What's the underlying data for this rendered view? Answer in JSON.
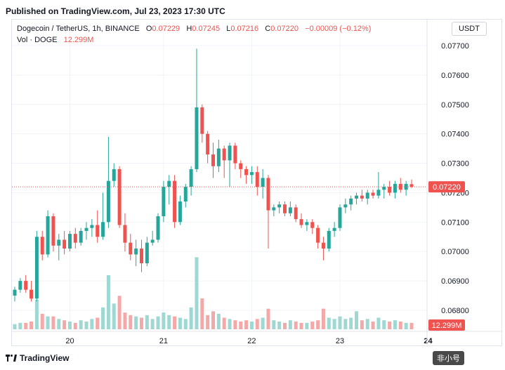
{
  "published": "Published on TradingView.com, Jul 23, 2023 17:30 UTC",
  "legend": {
    "symbol": "Dogecoin / TetherUS, 1h, BINANCE",
    "o_key": "O",
    "o_val": "0.07229",
    "h_key": "H",
    "h_val": "0.07245",
    "l_key": "L",
    "l_val": "0.07216",
    "c_key": "C",
    "c_val": "0.07220",
    "change": "−0.00009 (−0.12%)",
    "vol_label": "Vol · DOGE",
    "vol_val": "12.299M"
  },
  "currency_button": "USDT",
  "footer_brand": "TradingView",
  "watermark": "非小号",
  "colors": {
    "up": "#26a69a",
    "down": "#ef5350",
    "up_vol": "#9fd8d2",
    "down_vol": "#f4a9a8",
    "grid": "#f0f3fa",
    "axis_text": "#131722"
  },
  "chart_data": {
    "type": "candlestick",
    "title": "Dogecoin / TetherUS, 1h, BINANCE",
    "ylim": [
      0.0675,
      0.0775
    ],
    "y_ticks": [
      "0.07700",
      "0.07600",
      "0.07500",
      "0.07400",
      "0.07300",
      "0.07200",
      "0.07100",
      "0.07000",
      "0.06900",
      "0.06800"
    ],
    "x_ticks": [
      {
        "label": "20",
        "index": 10
      },
      {
        "label": "21",
        "index": 27
      },
      {
        "label": "22",
        "index": 43
      },
      {
        "label": "23",
        "index": 59
      },
      {
        "label": "24",
        "index": 75
      }
    ],
    "last_price": "0.07220",
    "last_volume": "12.299M",
    "volume_max": 6.0,
    "candles": [
      {
        "o": 0.0685,
        "h": 0.0688,
        "l": 0.0683,
        "c": 0.0687,
        "v": 0.4
      },
      {
        "o": 0.0687,
        "h": 0.0691,
        "l": 0.0686,
        "c": 0.069,
        "v": 0.5
      },
      {
        "o": 0.069,
        "h": 0.0692,
        "l": 0.0686,
        "c": 0.0687,
        "v": 0.5
      },
      {
        "o": 0.0687,
        "h": 0.069,
        "l": 0.0683,
        "c": 0.0684,
        "v": 0.6
      },
      {
        "o": 0.0684,
        "h": 0.0707,
        "l": 0.0683,
        "c": 0.0705,
        "v": 2.3
      },
      {
        "o": 0.0705,
        "h": 0.0707,
        "l": 0.0697,
        "c": 0.0699,
        "v": 1.2
      },
      {
        "o": 0.0699,
        "h": 0.0714,
        "l": 0.0698,
        "c": 0.0712,
        "v": 1.0
      },
      {
        "o": 0.0712,
        "h": 0.0713,
        "l": 0.07,
        "c": 0.0702,
        "v": 1.0
      },
      {
        "o": 0.0702,
        "h": 0.0706,
        "l": 0.0697,
        "c": 0.0704,
        "v": 0.8
      },
      {
        "o": 0.0704,
        "h": 0.0707,
        "l": 0.0699,
        "c": 0.0701,
        "v": 0.7
      },
      {
        "o": 0.0701,
        "h": 0.0707,
        "l": 0.07,
        "c": 0.0706,
        "v": 0.6
      },
      {
        "o": 0.0706,
        "h": 0.0708,
        "l": 0.0701,
        "c": 0.0703,
        "v": 0.5
      },
      {
        "o": 0.0703,
        "h": 0.0708,
        "l": 0.0702,
        "c": 0.0707,
        "v": 0.7
      },
      {
        "o": 0.0707,
        "h": 0.071,
        "l": 0.0704,
        "c": 0.0708,
        "v": 0.6
      },
      {
        "o": 0.0708,
        "h": 0.0711,
        "l": 0.0705,
        "c": 0.0709,
        "v": 0.8
      },
      {
        "o": 0.0709,
        "h": 0.0714,
        "l": 0.0703,
        "c": 0.0705,
        "v": 0.9
      },
      {
        "o": 0.0705,
        "h": 0.072,
        "l": 0.0704,
        "c": 0.071,
        "v": 1.7
      },
      {
        "o": 0.071,
        "h": 0.0739,
        "l": 0.0708,
        "c": 0.0724,
        "v": 4.2
      },
      {
        "o": 0.0724,
        "h": 0.073,
        "l": 0.0722,
        "c": 0.0728,
        "v": 2.0
      },
      {
        "o": 0.0728,
        "h": 0.0729,
        "l": 0.0708,
        "c": 0.0709,
        "v": 2.6
      },
      {
        "o": 0.0709,
        "h": 0.0713,
        "l": 0.07,
        "c": 0.0703,
        "v": 1.3
      },
      {
        "o": 0.0703,
        "h": 0.0706,
        "l": 0.0697,
        "c": 0.0699,
        "v": 1.1
      },
      {
        "o": 0.0699,
        "h": 0.0704,
        "l": 0.0695,
        "c": 0.0701,
        "v": 1.0
      },
      {
        "o": 0.0701,
        "h": 0.0704,
        "l": 0.0693,
        "c": 0.0696,
        "v": 0.9
      },
      {
        "o": 0.0696,
        "h": 0.0705,
        "l": 0.0695,
        "c": 0.0703,
        "v": 1.1
      },
      {
        "o": 0.0703,
        "h": 0.0707,
        "l": 0.0702,
        "c": 0.0704,
        "v": 0.8
      },
      {
        "o": 0.0704,
        "h": 0.0713,
        "l": 0.0703,
        "c": 0.0712,
        "v": 1.0
      },
      {
        "o": 0.0712,
        "h": 0.0724,
        "l": 0.071,
        "c": 0.0722,
        "v": 1.3
      },
      {
        "o": 0.0722,
        "h": 0.0726,
        "l": 0.0716,
        "c": 0.0724,
        "v": 1.1
      },
      {
        "o": 0.0724,
        "h": 0.0726,
        "l": 0.0708,
        "c": 0.071,
        "v": 1.0
      },
      {
        "o": 0.071,
        "h": 0.0719,
        "l": 0.0709,
        "c": 0.0717,
        "v": 0.9
      },
      {
        "o": 0.0717,
        "h": 0.0723,
        "l": 0.0715,
        "c": 0.0722,
        "v": 0.8
      },
      {
        "o": 0.0722,
        "h": 0.0729,
        "l": 0.0719,
        "c": 0.0728,
        "v": 1.7
      },
      {
        "o": 0.0728,
        "h": 0.0769,
        "l": 0.0727,
        "c": 0.0749,
        "v": 5.6
      },
      {
        "o": 0.0749,
        "h": 0.075,
        "l": 0.0737,
        "c": 0.074,
        "v": 2.4
      },
      {
        "o": 0.074,
        "h": 0.0741,
        "l": 0.073,
        "c": 0.0733,
        "v": 1.1
      },
      {
        "o": 0.0733,
        "h": 0.0737,
        "l": 0.0725,
        "c": 0.0729,
        "v": 1.4
      },
      {
        "o": 0.0729,
        "h": 0.0738,
        "l": 0.0727,
        "c": 0.0735,
        "v": 1.2
      },
      {
        "o": 0.0735,
        "h": 0.0736,
        "l": 0.0725,
        "c": 0.0731,
        "v": 0.9
      },
      {
        "o": 0.0731,
        "h": 0.0737,
        "l": 0.0722,
        "c": 0.0736,
        "v": 0.8
      },
      {
        "o": 0.0736,
        "h": 0.0737,
        "l": 0.0728,
        "c": 0.073,
        "v": 0.7
      },
      {
        "o": 0.073,
        "h": 0.0731,
        "l": 0.0725,
        "c": 0.0728,
        "v": 0.6
      },
      {
        "o": 0.0728,
        "h": 0.0729,
        "l": 0.0723,
        "c": 0.0726,
        "v": 0.7
      },
      {
        "o": 0.0726,
        "h": 0.0729,
        "l": 0.0723,
        "c": 0.0727,
        "v": 0.6
      },
      {
        "o": 0.0727,
        "h": 0.0729,
        "l": 0.0719,
        "c": 0.0722,
        "v": 0.8
      },
      {
        "o": 0.0722,
        "h": 0.0728,
        "l": 0.0718,
        "c": 0.0725,
        "v": 0.9
      },
      {
        "o": 0.0725,
        "h": 0.0726,
        "l": 0.0701,
        "c": 0.0714,
        "v": 1.6
      },
      {
        "o": 0.0714,
        "h": 0.0716,
        "l": 0.0712,
        "c": 0.0715,
        "v": 0.7
      },
      {
        "o": 0.0715,
        "h": 0.0717,
        "l": 0.0713,
        "c": 0.0716,
        "v": 0.6
      },
      {
        "o": 0.0716,
        "h": 0.0717,
        "l": 0.0712,
        "c": 0.0713,
        "v": 0.5
      },
      {
        "o": 0.0713,
        "h": 0.0717,
        "l": 0.0712,
        "c": 0.0715,
        "v": 0.7
      },
      {
        "o": 0.0715,
        "h": 0.0716,
        "l": 0.071,
        "c": 0.0711,
        "v": 0.6
      },
      {
        "o": 0.0711,
        "h": 0.0713,
        "l": 0.0708,
        "c": 0.0709,
        "v": 0.5
      },
      {
        "o": 0.0709,
        "h": 0.0711,
        "l": 0.0707,
        "c": 0.071,
        "v": 0.5
      },
      {
        "o": 0.071,
        "h": 0.0711,
        "l": 0.0706,
        "c": 0.0708,
        "v": 0.6
      },
      {
        "o": 0.0708,
        "h": 0.0709,
        "l": 0.0701,
        "c": 0.0703,
        "v": 0.7
      },
      {
        "o": 0.0703,
        "h": 0.0705,
        "l": 0.0697,
        "c": 0.0701,
        "v": 1.6
      },
      {
        "o": 0.0701,
        "h": 0.0708,
        "l": 0.07,
        "c": 0.0707,
        "v": 0.9
      },
      {
        "o": 0.0707,
        "h": 0.071,
        "l": 0.0705,
        "c": 0.0708,
        "v": 0.8
      },
      {
        "o": 0.0708,
        "h": 0.0716,
        "l": 0.0707,
        "c": 0.0715,
        "v": 1.0
      },
      {
        "o": 0.0715,
        "h": 0.0718,
        "l": 0.0713,
        "c": 0.0716,
        "v": 0.8
      },
      {
        "o": 0.0716,
        "h": 0.0719,
        "l": 0.0714,
        "c": 0.0718,
        "v": 0.9
      },
      {
        "o": 0.0718,
        "h": 0.072,
        "l": 0.0716,
        "c": 0.0719,
        "v": 1.4
      },
      {
        "o": 0.0719,
        "h": 0.0721,
        "l": 0.0717,
        "c": 0.0718,
        "v": 0.7
      },
      {
        "o": 0.0718,
        "h": 0.0721,
        "l": 0.0716,
        "c": 0.072,
        "v": 0.8
      },
      {
        "o": 0.072,
        "h": 0.0721,
        "l": 0.0718,
        "c": 0.0719,
        "v": 0.6
      },
      {
        "o": 0.0719,
        "h": 0.0727,
        "l": 0.0718,
        "c": 0.0721,
        "v": 0.9
      },
      {
        "o": 0.0721,
        "h": 0.0723,
        "l": 0.0718,
        "c": 0.0722,
        "v": 0.7
      },
      {
        "o": 0.0722,
        "h": 0.0724,
        "l": 0.0719,
        "c": 0.072,
        "v": 0.6
      },
      {
        "o": 0.072,
        "h": 0.0724,
        "l": 0.0718,
        "c": 0.0723,
        "v": 0.7
      },
      {
        "o": 0.0723,
        "h": 0.0725,
        "l": 0.072,
        "c": 0.0721,
        "v": 0.6
      },
      {
        "o": 0.0721,
        "h": 0.0724,
        "l": 0.0719,
        "c": 0.0723,
        "v": 0.5
      },
      {
        "o": 0.07229,
        "h": 0.07245,
        "l": 0.07216,
        "c": 0.0722,
        "v": 0.5
      }
    ]
  }
}
